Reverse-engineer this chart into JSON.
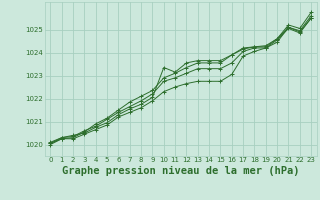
{
  "background_color": "#cce8dc",
  "plot_bg_color": "#cce8dc",
  "grid_color": "#a8cfc0",
  "line_color": "#2d6e2d",
  "marker_color": "#2d6e2d",
  "title": "Graphe pression niveau de la mer (hPa)",
  "title_fontsize": 7.5,
  "ylim": [
    1019.5,
    1026.2
  ],
  "xlim": [
    -0.5,
    23.5
  ],
  "yticks": [
    1020,
    1021,
    1022,
    1023,
    1024,
    1025
  ],
  "xticks": [
    0,
    1,
    2,
    3,
    4,
    5,
    6,
    7,
    8,
    9,
    10,
    11,
    12,
    13,
    14,
    15,
    16,
    17,
    18,
    19,
    20,
    21,
    22,
    23
  ],
  "series": [
    [
      1020.05,
      1020.3,
      1020.4,
      1020.5,
      1020.75,
      1020.95,
      1021.3,
      1021.55,
      1021.75,
      1022.05,
      1023.35,
      1023.15,
      1023.55,
      1023.65,
      1023.65,
      1023.65,
      1023.9,
      1024.15,
      1024.25,
      1024.25,
      1024.6,
      1025.2,
      1025.05,
      1025.75
    ],
    [
      1020.05,
      1020.25,
      1020.25,
      1020.45,
      1020.65,
      1020.85,
      1021.2,
      1021.4,
      1021.6,
      1021.9,
      1022.3,
      1022.5,
      1022.65,
      1022.75,
      1022.75,
      1022.75,
      1023.05,
      1023.85,
      1024.05,
      1024.2,
      1024.45,
      1025.1,
      1024.9,
      1025.5
    ],
    [
      1020.1,
      1020.3,
      1020.35,
      1020.6,
      1020.8,
      1021.1,
      1021.4,
      1021.65,
      1021.9,
      1022.2,
      1022.75,
      1022.9,
      1023.1,
      1023.3,
      1023.3,
      1023.3,
      1023.55,
      1024.05,
      1024.2,
      1024.2,
      1024.55,
      1025.05,
      1024.85,
      1025.5
    ],
    [
      1020.0,
      1020.25,
      1020.3,
      1020.55,
      1020.9,
      1021.15,
      1021.5,
      1021.85,
      1022.1,
      1022.35,
      1022.9,
      1023.1,
      1023.35,
      1023.55,
      1023.55,
      1023.55,
      1023.9,
      1024.2,
      1024.25,
      1024.3,
      1024.6,
      1025.1,
      1024.95,
      1025.6
    ]
  ]
}
